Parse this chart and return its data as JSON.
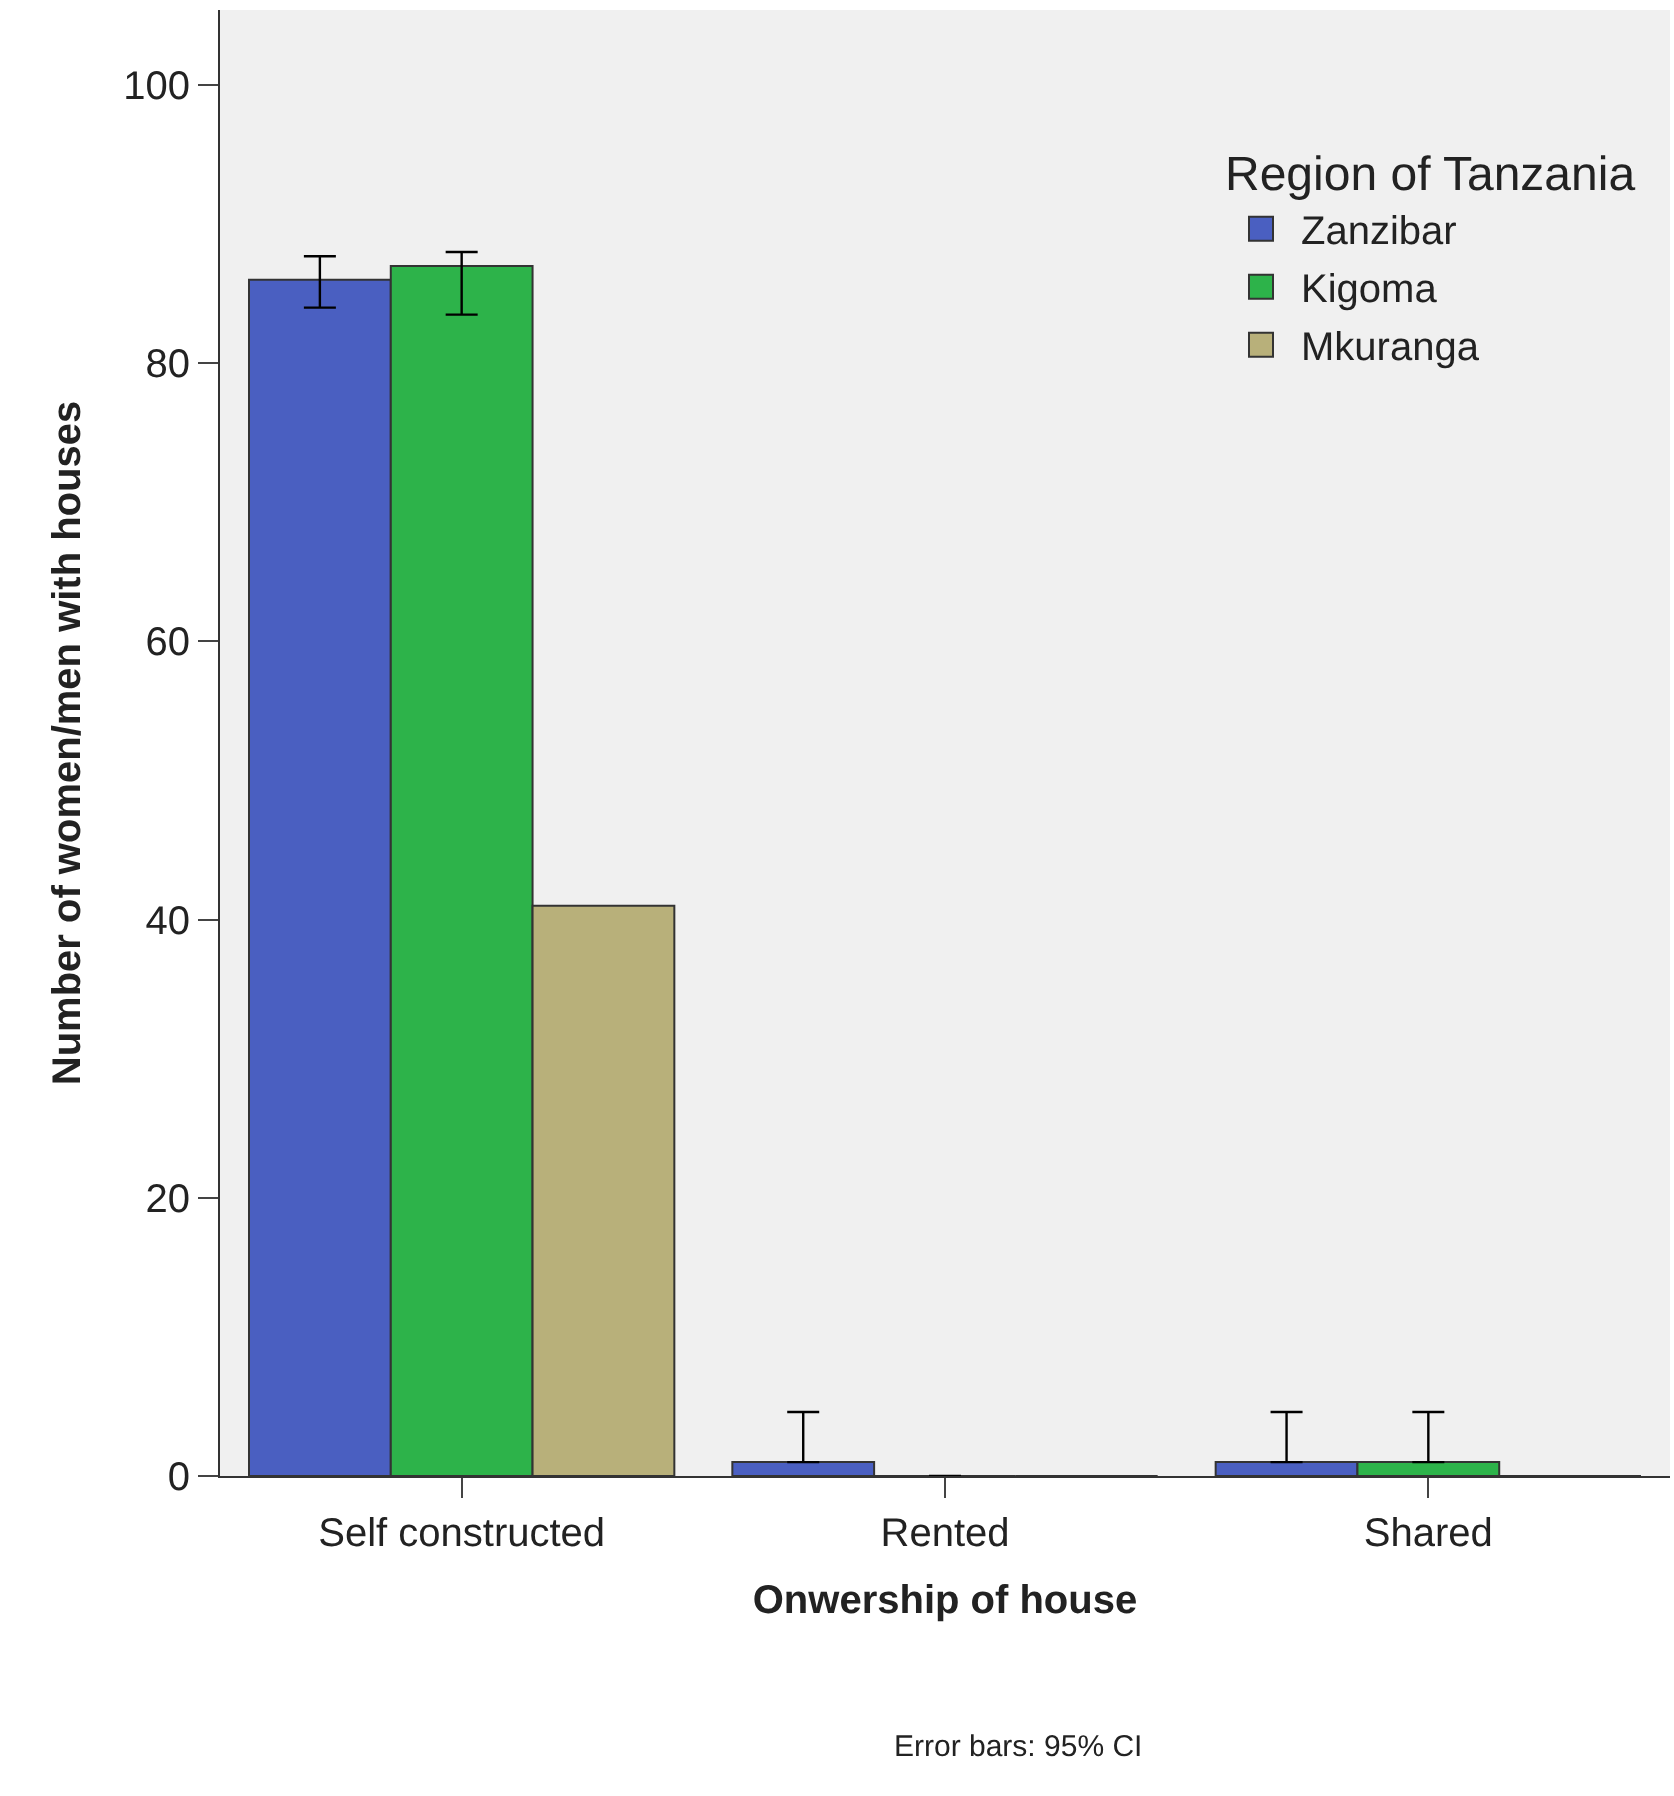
{
  "chart_data": {
    "type": "bar",
    "xlabel": "Onwership of house",
    "ylabel": "Number of women/men with houses",
    "legend_title": "Region of Tanzania",
    "categories": [
      "Self constructed",
      "Rented",
      "Shared"
    ],
    "series": [
      {
        "name": "Zanzibar",
        "color": "#4a5fc1",
        "values": [
          86,
          1,
          1
        ],
        "errors": [
          [
            84,
            87.7
          ],
          [
            1,
            4.6
          ],
          [
            1,
            4.6
          ]
        ]
      },
      {
        "name": "Kigoma",
        "color": "#2db34a",
        "values": [
          87,
          0,
          1
        ],
        "errors": [
          [
            83.5,
            88
          ],
          null,
          [
            1,
            4.6
          ]
        ]
      },
      {
        "name": "Mkuranga",
        "color": "#b8b07a",
        "values": [
          41,
          0,
          0
        ]
      }
    ],
    "ylim": [
      0,
      105.4
    ],
    "yticks": [
      0,
      20,
      40,
      60,
      80,
      100
    ],
    "grid": false,
    "legend": "top right",
    "annotations": [
      "Error bars: 95% CI"
    ]
  }
}
